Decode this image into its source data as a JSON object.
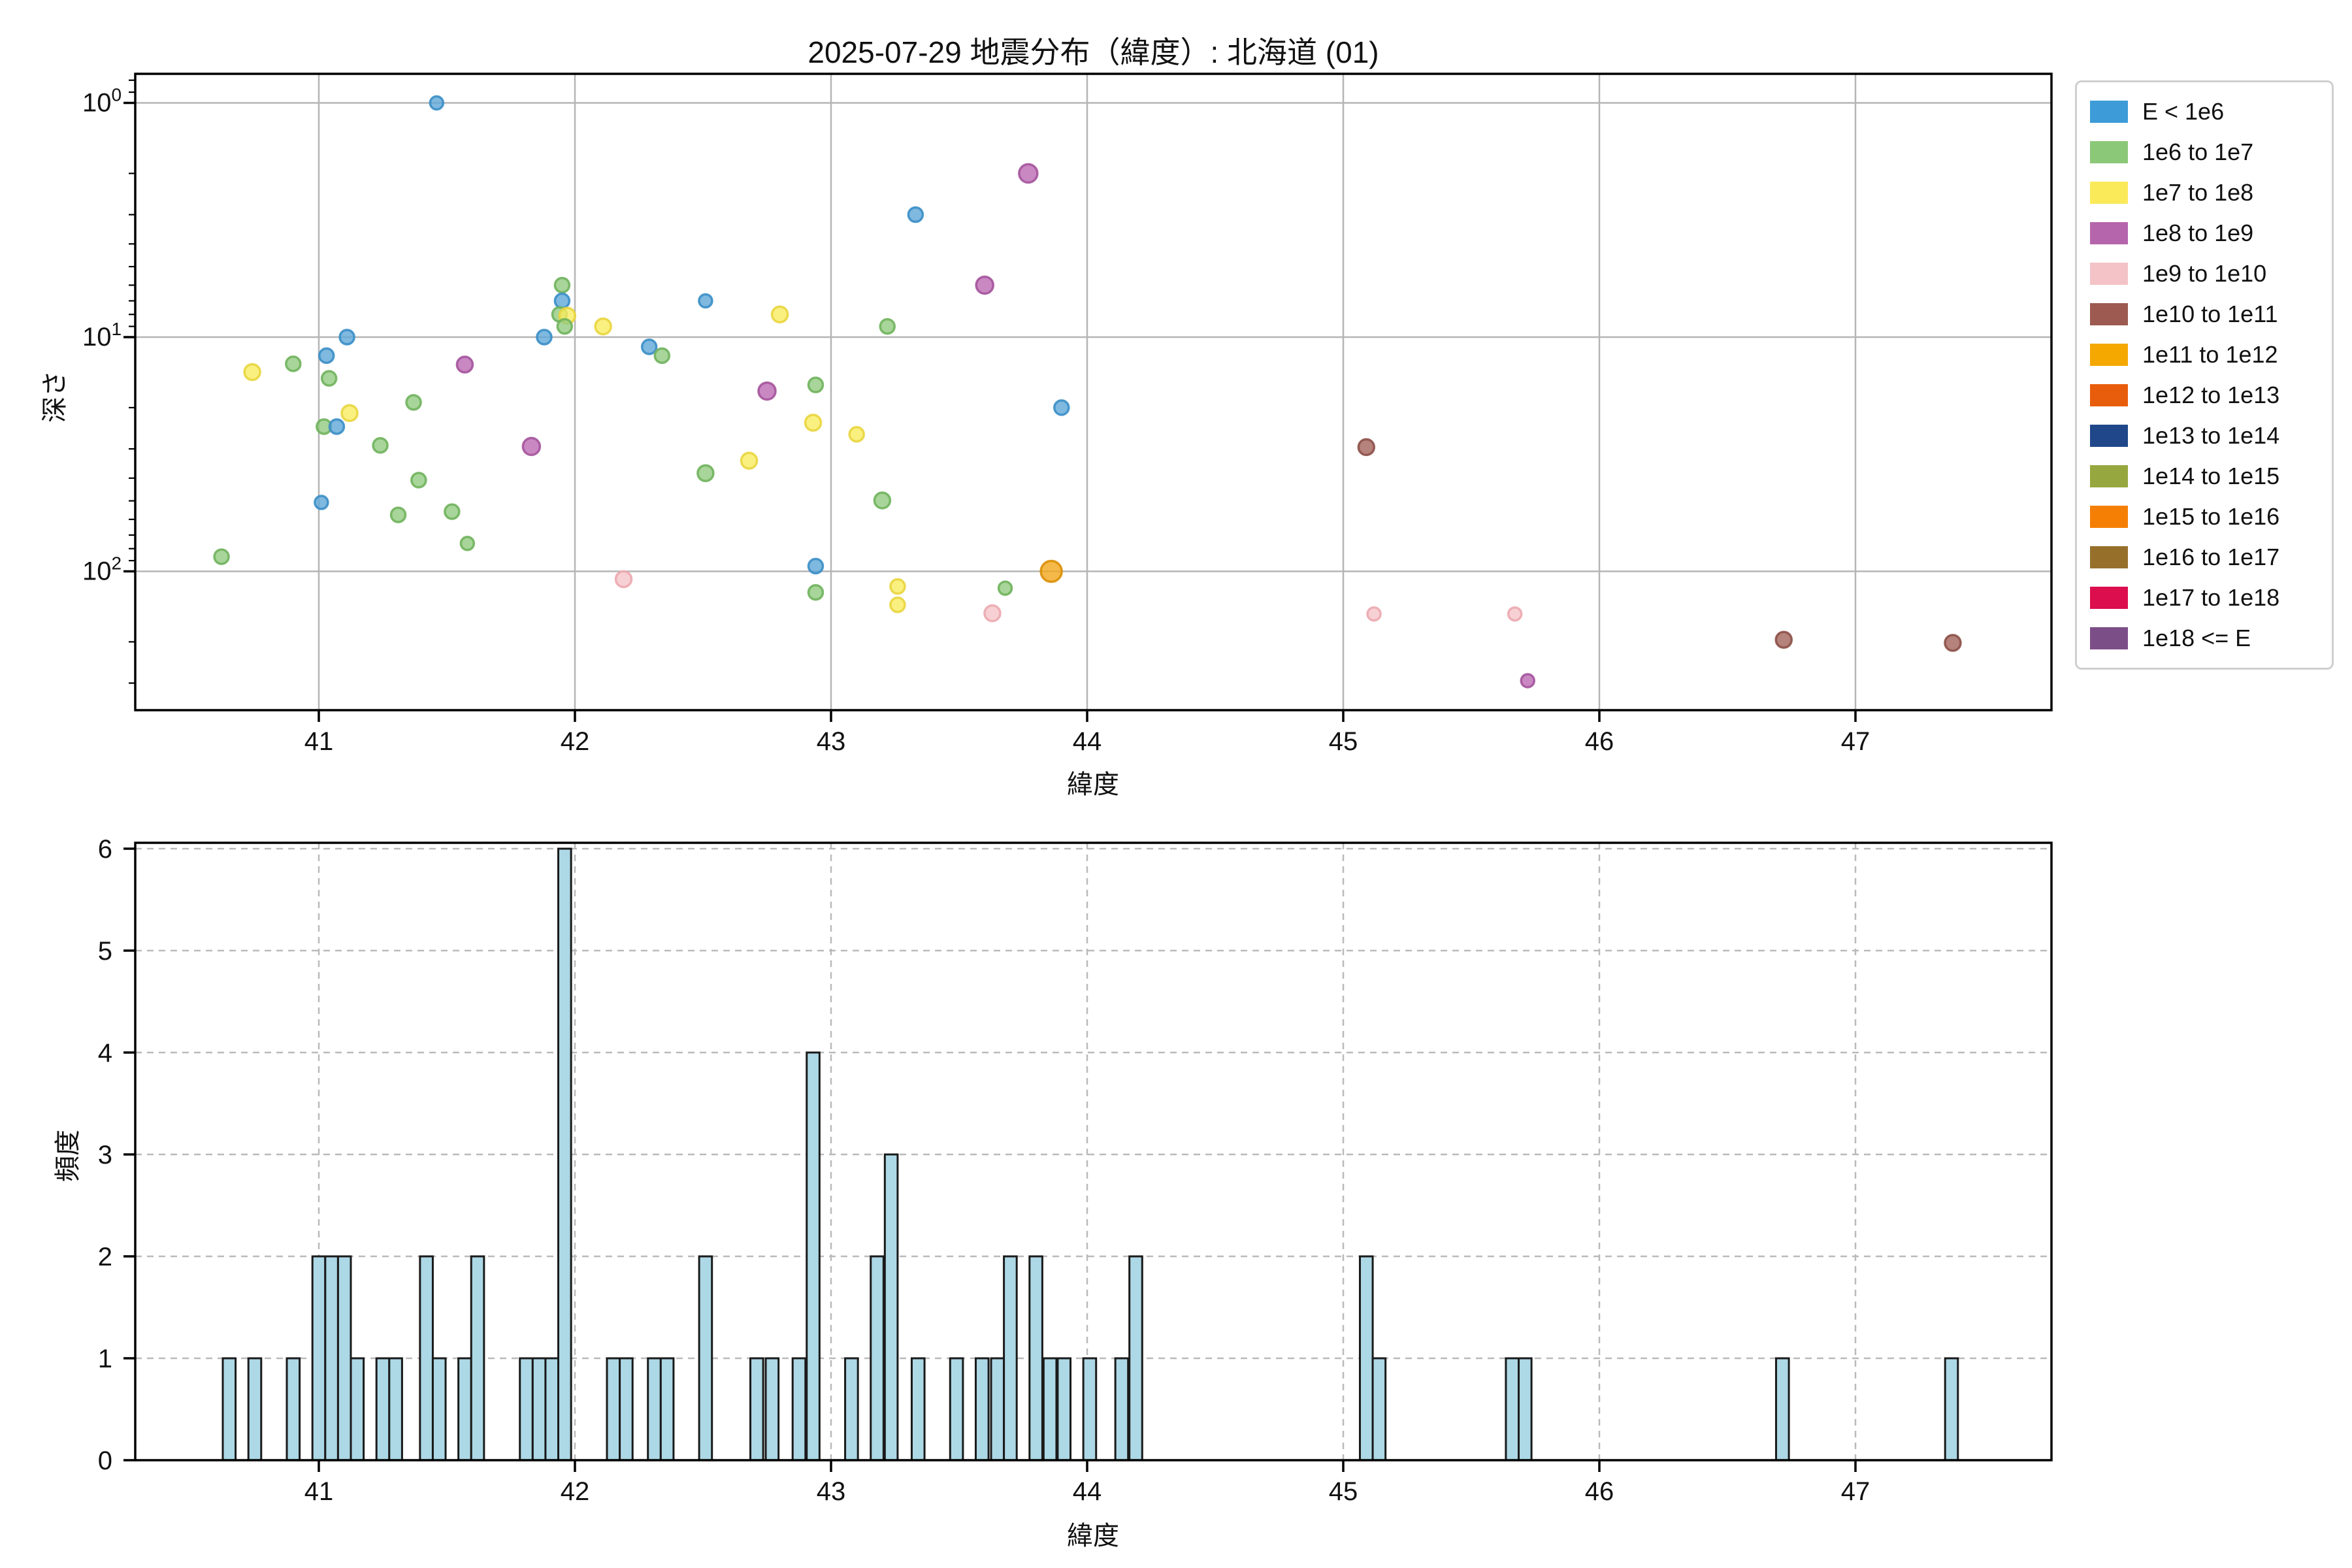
{
  "title": "2025-07-29 地震分布（緯度）: 北海道 (01)",
  "top_plot": {
    "xlabel": "緯度",
    "ylabel": "深さ",
    "x_ticks": [
      41,
      42,
      43,
      44,
      45,
      46,
      47
    ],
    "y_tick_exponents": [
      0,
      1,
      2
    ],
    "y_minor_depths": [
      0.8,
      0.9,
      2,
      3,
      4,
      5,
      6,
      7,
      8,
      9,
      20,
      30,
      40,
      50,
      60,
      70,
      80,
      90,
      200,
      300
    ]
  },
  "histogram": {
    "xlabel": "緯度",
    "ylabel": "頻度",
    "x_ticks": [
      41,
      42,
      43,
      44,
      45,
      46,
      47
    ],
    "y_ticks": [
      0,
      1,
      2,
      3,
      4,
      5,
      6
    ]
  },
  "colors": {
    "grid_top": "#b5b5b5",
    "grid_hist": "#bababa",
    "spine": "#000000",
    "tick_text": "#111111",
    "bar_fill": "#add8e6",
    "bar_edge": "#1a1a1a"
  },
  "marker_palette": {
    "blue": {
      "fill": "#5fa8d8",
      "edge": "#3a8ec6"
    },
    "green": {
      "fill": "#92cb80",
      "edge": "#6fb25c"
    },
    "yellow": {
      "fill": "#f9ec60",
      "edge": "#e9d53e"
    },
    "magenta": {
      "fill": "#bc6ab3",
      "edge": "#a4539b"
    },
    "pink": {
      "fill": "#f5c4c9",
      "edge": "#eba8af"
    },
    "brown": {
      "fill": "#a2635b",
      "edge": "#8c5048"
    },
    "amber": {
      "fill": "#f3a71d",
      "edge": "#d98f06"
    }
  },
  "legend": {
    "items": [
      {
        "label": "E < 1e6",
        "color": "#3d9cd8"
      },
      {
        "label": "1e6 to 1e7",
        "color": "#8bc878"
      },
      {
        "label": "1e7 to 1e8",
        "color": "#faea5a"
      },
      {
        "label": "1e8 to 1e9",
        "color": "#b565ac"
      },
      {
        "label": "1e9 to 1e10",
        "color": "#f4c3c7"
      },
      {
        "label": "1e10 to 1e11",
        "color": "#9c5a51"
      },
      {
        "label": "1e11 to 1e12",
        "color": "#f4a800"
      },
      {
        "label": "1e12 to 1e13",
        "color": "#e85d0b"
      },
      {
        "label": "1e13 to 1e14",
        "color": "#1f4789"
      },
      {
        "label": "1e14 to 1e15",
        "color": "#95a73e"
      },
      {
        "label": "1e15 to 1e16",
        "color": "#f57f04"
      },
      {
        "label": "1e16 to 1e17",
        "color": "#96702b"
      },
      {
        "label": "1e17 to 1e18",
        "color": "#dc0e4e"
      },
      {
        "label": "1e18 <= E",
        "color": "#7c4e87"
      }
    ]
  },
  "chart_data": [
    {
      "type": "scatter",
      "title": "2025-07-29 地震分布（緯度）: 北海道 (01)",
      "xlabel": "緯度",
      "ylabel": "深さ",
      "x_range": [
        40.28,
        47.77
      ],
      "y_scale": "log, inverted (depth increases downward)",
      "y_range": [
        0.75,
        390
      ],
      "grid": true,
      "legend_position": "outside upper right",
      "points": [
        {
          "lat": 41.46,
          "depth": 1.0,
          "cat": "E < 1e6",
          "c": "blue",
          "r": 10
        },
        {
          "lat": 41.11,
          "depth": 10.0,
          "cat": "E < 1e6",
          "c": "blue",
          "r": 11
        },
        {
          "lat": 41.03,
          "depth": 12.0,
          "cat": "E < 1e6",
          "c": "blue",
          "r": 11
        },
        {
          "lat": 40.9,
          "depth": 13.0,
          "cat": "1e6 to 1e7",
          "c": "green",
          "r": 11
        },
        {
          "lat": 40.74,
          "depth": 14.1,
          "cat": "1e7 to 1e8",
          "c": "yellow",
          "r": 12
        },
        {
          "lat": 41.04,
          "depth": 15.0,
          "cat": "1e6 to 1e7",
          "c": "green",
          "r": 11
        },
        {
          "lat": 41.57,
          "depth": 13.1,
          "cat": "1e8 to 1e9",
          "c": "magenta",
          "r": 12
        },
        {
          "lat": 41.37,
          "depth": 19.0,
          "cat": "1e6 to 1e7",
          "c": "green",
          "r": 11
        },
        {
          "lat": 41.12,
          "depth": 21.1,
          "cat": "1e7 to 1e8",
          "c": "yellow",
          "r": 12
        },
        {
          "lat": 41.02,
          "depth": 24.1,
          "cat": "1e6 to 1e7",
          "c": "green",
          "r": 11
        },
        {
          "lat": 41.07,
          "depth": 24.1,
          "cat": "E < 1e6",
          "c": "blue",
          "r": 11
        },
        {
          "lat": 41.24,
          "depth": 29.0,
          "cat": "1e6 to 1e7",
          "c": "green",
          "r": 11
        },
        {
          "lat": 41.39,
          "depth": 40.8,
          "cat": "1e6 to 1e7",
          "c": "green",
          "r": 11
        },
        {
          "lat": 41.01,
          "depth": 50.8,
          "cat": "E < 1e6",
          "c": "blue",
          "r": 10
        },
        {
          "lat": 41.31,
          "depth": 57.4,
          "cat": "1e6 to 1e7",
          "c": "green",
          "r": 11
        },
        {
          "lat": 41.52,
          "depth": 55.6,
          "cat": "1e6 to 1e7",
          "c": "green",
          "r": 11
        },
        {
          "lat": 41.58,
          "depth": 76.0,
          "cat": "1e6 to 1e7",
          "c": "green",
          "r": 10
        },
        {
          "lat": 40.62,
          "depth": 86.6,
          "cat": "1e6 to 1e7",
          "c": "green",
          "r": 11
        },
        {
          "lat": 41.95,
          "depth": 6.0,
          "cat": "1e6 to 1e7",
          "c": "green",
          "r": 11
        },
        {
          "lat": 41.95,
          "depth": 7.0,
          "cat": "E < 1e6",
          "c": "blue",
          "r": 11
        },
        {
          "lat": 41.94,
          "depth": 8.0,
          "cat": "1e6 to 1e7",
          "c": "green",
          "r": 11
        },
        {
          "lat": 41.97,
          "depth": 8.1,
          "cat": "1e7 to 1e8",
          "c": "yellow",
          "r": 12
        },
        {
          "lat": 41.96,
          "depth": 9.0,
          "cat": "1e6 to 1e7",
          "c": "green",
          "r": 11
        },
        {
          "lat": 41.88,
          "depth": 10.0,
          "cat": "E < 1e6",
          "c": "blue",
          "r": 11
        },
        {
          "lat": 42.11,
          "depth": 9.0,
          "cat": "1e7 to 1e8",
          "c": "yellow",
          "r": 12
        },
        {
          "lat": 42.51,
          "depth": 7.0,
          "cat": "E < 1e6",
          "c": "blue",
          "r": 10
        },
        {
          "lat": 42.8,
          "depth": 8.0,
          "cat": "1e7 to 1e8",
          "c": "yellow",
          "r": 12
        },
        {
          "lat": 42.29,
          "depth": 11.0,
          "cat": "E < 1e6",
          "c": "blue",
          "r": 11
        },
        {
          "lat": 42.34,
          "depth": 12.0,
          "cat": "1e6 to 1e7",
          "c": "green",
          "r": 11
        },
        {
          "lat": 42.75,
          "depth": 17.0,
          "cat": "1e8 to 1e9",
          "c": "magenta",
          "r": 13
        },
        {
          "lat": 42.94,
          "depth": 16.0,
          "cat": "1e6 to 1e7",
          "c": "green",
          "r": 11
        },
        {
          "lat": 42.93,
          "depth": 23.2,
          "cat": "1e7 to 1e8",
          "c": "yellow",
          "r": 12
        },
        {
          "lat": 43.1,
          "depth": 26.0,
          "cat": "1e7 to 1e8",
          "c": "yellow",
          "r": 11
        },
        {
          "lat": 41.83,
          "depth": 29.3,
          "cat": "1e8 to 1e9",
          "c": "magenta",
          "r": 13
        },
        {
          "lat": 42.68,
          "depth": 33.7,
          "cat": "1e7 to 1e8",
          "c": "yellow",
          "r": 12
        },
        {
          "lat": 42.51,
          "depth": 38.1,
          "cat": "1e6 to 1e7",
          "c": "green",
          "r": 12
        },
        {
          "lat": 42.19,
          "depth": 108,
          "cat": "1e9 to 1e10",
          "c": "pink",
          "r": 12
        },
        {
          "lat": 42.94,
          "depth": 95,
          "cat": "E < 1e6",
          "c": "blue",
          "r": 11
        },
        {
          "lat": 42.94,
          "depth": 123,
          "cat": "1e6 to 1e7",
          "c": "green",
          "r": 11
        },
        {
          "lat": 43.77,
          "depth": 2.0,
          "cat": "1e8 to 1e9",
          "c": "magenta",
          "r": 14
        },
        {
          "lat": 43.33,
          "depth": 3.0,
          "cat": "E < 1e6",
          "c": "blue",
          "r": 11
        },
        {
          "lat": 43.6,
          "depth": 6.0,
          "cat": "1e8 to 1e9",
          "c": "magenta",
          "r": 13
        },
        {
          "lat": 43.22,
          "depth": 9.0,
          "cat": "1e6 to 1e7",
          "c": "green",
          "r": 11
        },
        {
          "lat": 43.9,
          "depth": 20.0,
          "cat": "E < 1e6",
          "c": "blue",
          "r": 11
        },
        {
          "lat": 43.2,
          "depth": 49.8,
          "cat": "1e6 to 1e7",
          "c": "green",
          "r": 12
        },
        {
          "lat": 43.86,
          "depth": 100,
          "cat": "1e11 to 1e12",
          "c": "amber",
          "r": 16
        },
        {
          "lat": 43.26,
          "depth": 116,
          "cat": "1e7 to 1e8",
          "c": "yellow",
          "r": 11
        },
        {
          "lat": 43.26,
          "depth": 139,
          "cat": "1e7 to 1e8",
          "c": "yellow",
          "r": 11
        },
        {
          "lat": 43.68,
          "depth": 118,
          "cat": "1e6 to 1e7",
          "c": "green",
          "r": 10
        },
        {
          "lat": 43.63,
          "depth": 151,
          "cat": "1e9 to 1e10",
          "c": "pink",
          "r": 12
        },
        {
          "lat": 45.09,
          "depth": 29.5,
          "cat": "1e10 to 1e11",
          "c": "brown",
          "r": 12
        },
        {
          "lat": 45.12,
          "depth": 152,
          "cat": "1e9 to 1e10",
          "c": "pink",
          "r": 10
        },
        {
          "lat": 45.67,
          "depth": 152,
          "cat": "1e9 to 1e10",
          "c": "pink",
          "r": 10
        },
        {
          "lat": 45.72,
          "depth": 293,
          "cat": "1e8 to 1e9",
          "c": "magenta",
          "r": 10
        },
        {
          "lat": 46.72,
          "depth": 196,
          "cat": "1e10 to 1e11",
          "c": "brown",
          "r": 12
        },
        {
          "lat": 47.38,
          "depth": 202,
          "cat": "1e10 to 1e11",
          "c": "brown",
          "r": 12
        }
      ]
    },
    {
      "type": "bar",
      "xlabel": "緯度",
      "ylabel": "頻度",
      "bin_width": 0.05,
      "ylim": [
        0,
        6.06
      ],
      "grid": "dashed",
      "bars": [
        {
          "lat": 40.65,
          "count": 1
        },
        {
          "lat": 40.75,
          "count": 1
        },
        {
          "lat": 40.9,
          "count": 1
        },
        {
          "lat": 41.0,
          "count": 2
        },
        {
          "lat": 41.05,
          "count": 2
        },
        {
          "lat": 41.1,
          "count": 2
        },
        {
          "lat": 41.15,
          "count": 1
        },
        {
          "lat": 41.25,
          "count": 1
        },
        {
          "lat": 41.3,
          "count": 1
        },
        {
          "lat": 41.42,
          "count": 2
        },
        {
          "lat": 41.47,
          "count": 1
        },
        {
          "lat": 41.57,
          "count": 1
        },
        {
          "lat": 41.62,
          "count": 2
        },
        {
          "lat": 41.81,
          "count": 1
        },
        {
          "lat": 41.86,
          "count": 1
        },
        {
          "lat": 41.91,
          "count": 1
        },
        {
          "lat": 41.96,
          "count": 6
        },
        {
          "lat": 42.15,
          "count": 1
        },
        {
          "lat": 42.2,
          "count": 1
        },
        {
          "lat": 42.31,
          "count": 1
        },
        {
          "lat": 42.36,
          "count": 1
        },
        {
          "lat": 42.51,
          "count": 2
        },
        {
          "lat": 42.71,
          "count": 1
        },
        {
          "lat": 42.77,
          "count": 1
        },
        {
          "lat": 42.875,
          "count": 1
        },
        {
          "lat": 42.93,
          "count": 4
        },
        {
          "lat": 43.08,
          "count": 1
        },
        {
          "lat": 43.18,
          "count": 2
        },
        {
          "lat": 43.235,
          "count": 3
        },
        {
          "lat": 43.34,
          "count": 1
        },
        {
          "lat": 43.49,
          "count": 1
        },
        {
          "lat": 43.59,
          "count": 1
        },
        {
          "lat": 43.65,
          "count": 1
        },
        {
          "lat": 43.7,
          "count": 2
        },
        {
          "lat": 43.8,
          "count": 2
        },
        {
          "lat": 43.855,
          "count": 1
        },
        {
          "lat": 43.91,
          "count": 1
        },
        {
          "lat": 44.01,
          "count": 1
        },
        {
          "lat": 44.135,
          "count": 1
        },
        {
          "lat": 44.19,
          "count": 2
        },
        {
          "lat": 45.09,
          "count": 2
        },
        {
          "lat": 45.14,
          "count": 1
        },
        {
          "lat": 45.66,
          "count": 1
        },
        {
          "lat": 45.71,
          "count": 1
        },
        {
          "lat": 46.715,
          "count": 1
        },
        {
          "lat": 47.375,
          "count": 1
        }
      ]
    }
  ]
}
